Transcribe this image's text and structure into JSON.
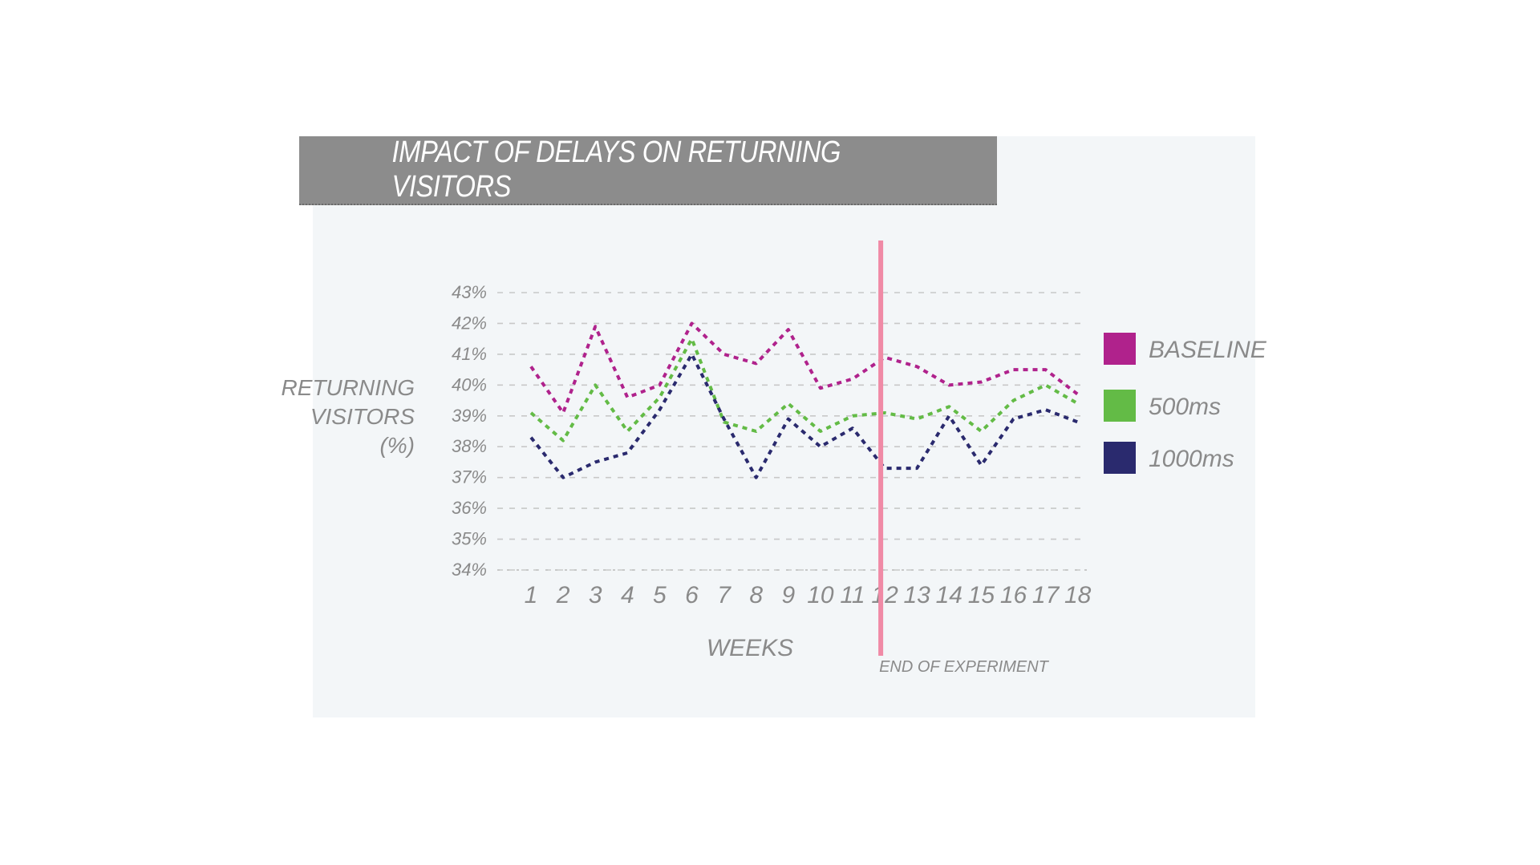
{
  "colors": {
    "baseline": "#b0228c",
    "ms500": "#63bb46",
    "ms1000": "#2a2a6e",
    "end_line": "#f08aa6",
    "grid": "#c8c8c8",
    "text": "#8a8a8a",
    "title_bg": "#8c8c8c"
  },
  "chart_data": {
    "type": "line",
    "title": "IMPACT OF DELAYS ON RETURNING VISITORS",
    "xlabel": "WEEKS",
    "ylabel": [
      "RETURNING",
      "VISITORS",
      "(%)"
    ],
    "x": [
      1,
      2,
      3,
      4,
      5,
      6,
      7,
      8,
      9,
      10,
      11,
      12,
      13,
      14,
      15,
      16,
      17,
      18
    ],
    "x_tick_labels": [
      "1",
      "2",
      "3",
      "4",
      "5",
      "6",
      "7",
      "8",
      "9",
      "10",
      "11",
      "12",
      "13",
      "14",
      "15",
      "16",
      "17",
      "18"
    ],
    "y_ticks": [
      34,
      35,
      36,
      37,
      38,
      39,
      40,
      41,
      42,
      43
    ],
    "y_tick_labels": [
      "34%",
      "35%",
      "36%",
      "37%",
      "38%",
      "39%",
      "40%",
      "41%",
      "42%",
      "43%"
    ],
    "ylim": [
      34,
      43
    ],
    "grid": true,
    "legend_position": "right",
    "series": [
      {
        "name": "BASELINE",
        "color_key": "baseline",
        "values": [
          40.6,
          39.1,
          41.9,
          39.6,
          40.0,
          42.0,
          41.0,
          40.7,
          41.8,
          39.9,
          40.2,
          40.9,
          40.6,
          40.0,
          40.1,
          40.5,
          40.5,
          39.7
        ]
      },
      {
        "name": "500ms",
        "color_key": "ms500",
        "values": [
          39.1,
          38.2,
          40.0,
          38.5,
          39.6,
          41.5,
          38.8,
          38.5,
          39.4,
          38.5,
          39.0,
          39.1,
          38.9,
          39.3,
          38.5,
          39.5,
          40.0,
          39.4
        ]
      },
      {
        "name": "1000ms",
        "color_key": "ms1000",
        "values": [
          38.3,
          37.0,
          37.5,
          37.8,
          39.2,
          41.0,
          38.9,
          37.0,
          38.9,
          38.0,
          38.6,
          37.3,
          37.3,
          39.0,
          37.4,
          38.9,
          39.2,
          38.8
        ]
      }
    ],
    "annotations": [
      {
        "text": "END OF EXPERIMENT",
        "at_x": 12
      }
    ]
  }
}
